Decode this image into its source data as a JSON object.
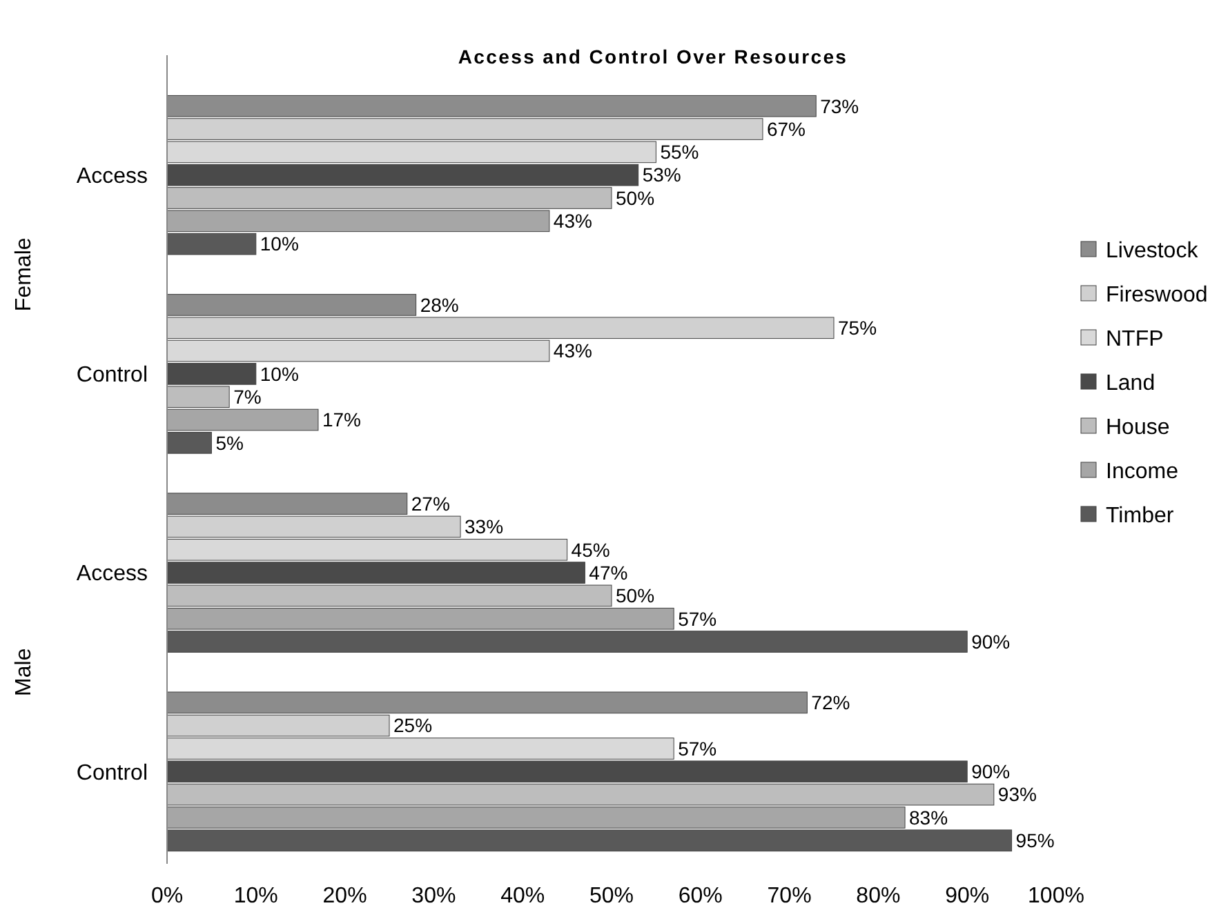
{
  "chart_data": {
    "type": "bar",
    "orientation": "horizontal",
    "title": "Access and Control Over Resources",
    "categories": [
      "Access",
      "Control",
      "Access",
      "Control"
    ],
    "annotations": [
      "Female",
      "Male"
    ],
    "series": [
      {
        "name": "Livestock",
        "color": "#8c8c8c",
        "values": [
          73,
          28,
          27,
          72
        ],
        "value_labels": [
          "73%",
          "28%",
          "27%",
          "72%"
        ]
      },
      {
        "name": "Fireswood",
        "color": "#d0d0d0",
        "values": [
          67,
          75,
          33,
          25
        ],
        "value_labels": [
          "67%",
          "75%",
          "33%",
          "25%"
        ]
      },
      {
        "name": "NTFP",
        "color": "#d9d9d9",
        "values": [
          55,
          43,
          45,
          57
        ],
        "value_labels": [
          "55%",
          "43%",
          "45%",
          "57%"
        ]
      },
      {
        "name": "Land",
        "color": "#4a4a4a",
        "values": [
          53,
          10,
          47,
          90
        ],
        "value_labels": [
          "53%",
          "10%",
          "47%",
          "90%"
        ]
      },
      {
        "name": "House",
        "color": "#bdbdbd",
        "values": [
          50,
          7,
          50,
          93
        ],
        "value_labels": [
          "50%",
          "7%",
          "50%",
          "93%"
        ]
      },
      {
        "name": "Income",
        "color": "#a6a6a6",
        "values": [
          43,
          17,
          57,
          83
        ],
        "value_labels": [
          "43%",
          "17%",
          "57%",
          "83%"
        ]
      },
      {
        "name": "Timber",
        "color": "#595959",
        "values": [
          10,
          5,
          90,
          95
        ],
        "value_labels": [
          "10%",
          "5%",
          "90%",
          "95%"
        ]
      }
    ],
    "xlim": [
      0,
      100
    ],
    "xticks": [
      {
        "value": 0,
        "label": "0%"
      },
      {
        "value": 10,
        "label": "10%"
      },
      {
        "value": 20,
        "label": "20%"
      },
      {
        "value": 30,
        "label": "30%"
      },
      {
        "value": 40,
        "label": "40%"
      },
      {
        "value": 50,
        "label": "50%"
      },
      {
        "value": 60,
        "label": "60%"
      },
      {
        "value": 70,
        "label": "70%"
      },
      {
        "value": 80,
        "label": "80%"
      },
      {
        "value": 90,
        "label": "90%"
      },
      {
        "value": 100,
        "label": "100%"
      }
    ],
    "grid": false,
    "legend": "right"
  }
}
